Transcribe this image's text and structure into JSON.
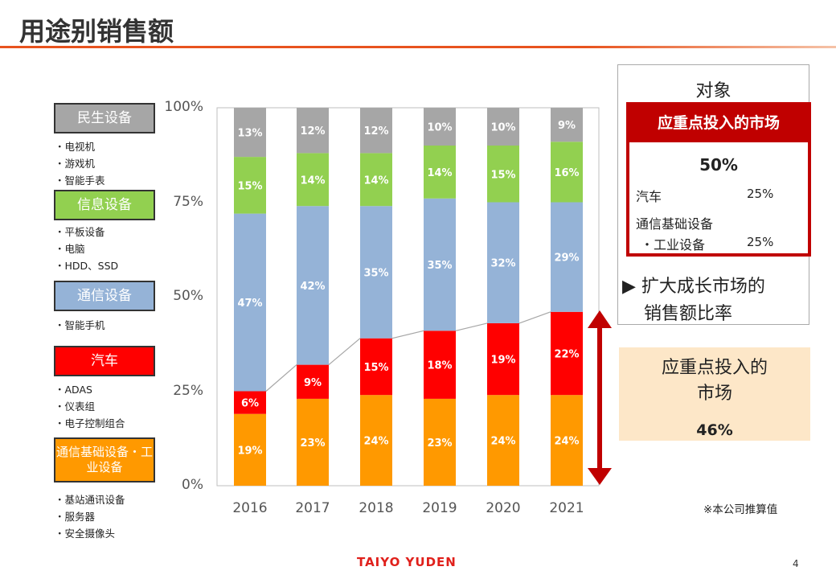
{
  "title": "用途别销售额",
  "legend": [
    {
      "label": "民生设备",
      "color": "#a6a6a6",
      "items": [
        "・电视机",
        "・游戏机",
        "・智能手表"
      ]
    },
    {
      "label": "信息设备",
      "color": "#92d050",
      "items": [
        "・平板设备",
        "・电脑",
        "・HDD、SSD"
      ]
    },
    {
      "label": "通信设备",
      "color": "#95b3d7",
      "items": [
        "・智能手机"
      ]
    },
    {
      "label": "汽车",
      "color": "#ff0000",
      "items": [
        "・ADAS",
        "・仪表组",
        "・电子控制组合"
      ]
    },
    {
      "label": "通信基础设备・工业设备",
      "color": "#ff9900",
      "items": [
        "・基站通讯设备",
        "・服务器",
        "・安全摄像头"
      ]
    }
  ],
  "chart_data": {
    "type": "bar",
    "stacked": true,
    "categories": [
      "2016",
      "2017",
      "2018",
      "2019",
      "2020",
      "2021"
    ],
    "yticks": [
      "0%",
      "25%",
      "50%",
      "75%",
      "100%"
    ],
    "ylim": [
      0,
      100
    ],
    "series": [
      {
        "name": "通信基础设备・工业设备",
        "color": "#ff9900",
        "values": [
          19,
          23,
          24,
          23,
          24,
          24
        ]
      },
      {
        "name": "汽车",
        "color": "#ff0000",
        "values": [
          6,
          9,
          15,
          18,
          19,
          22
        ]
      },
      {
        "name": "通信设备",
        "color": "#95b3d7",
        "values": [
          47,
          42,
          35,
          35,
          32,
          29
        ]
      },
      {
        "name": "信息设备",
        "color": "#92d050",
        "values": [
          15,
          14,
          14,
          14,
          15,
          16
        ]
      },
      {
        "name": "民生设备",
        "color": "#a6a6a6",
        "values": [
          13,
          12,
          12,
          10,
          10,
          9
        ]
      }
    ]
  },
  "target": {
    "heading": "对象",
    "box_title": "应重点投入的市场",
    "total": "50%",
    "rows": [
      {
        "label": "汽车",
        "value": "25%"
      },
      {
        "label": "通信基础设备",
        "value": ""
      },
      {
        "label": "・工业设备",
        "value": "25%"
      }
    ],
    "expand_line1": "▶ 扩大成长市场的",
    "expand_line2": "销售额比率"
  },
  "focus": {
    "line1": "应重点投入的",
    "line2": "市场",
    "value": "46%"
  },
  "note": "※本公司推算值",
  "logo": "TAIYO YUDEN",
  "page": "4"
}
